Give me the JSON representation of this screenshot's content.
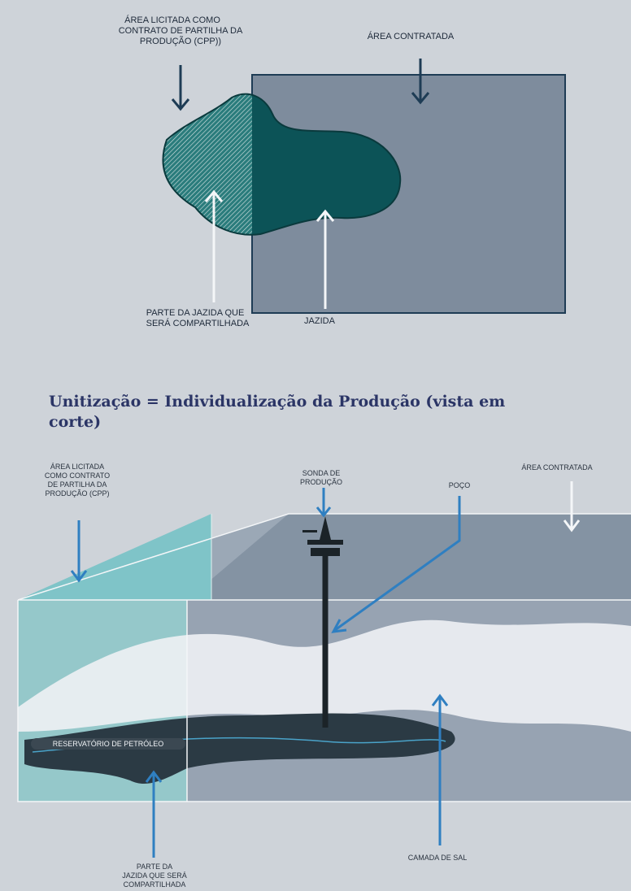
{
  "top_diagram": {
    "cpp_area_label": [
      "ÁREA LICITADA COMO",
      "CONTRATO DE PARTILHA DA",
      "PRODUÇÃO (CPP))"
    ],
    "contracted_area_label": "ÁREA CONTRATADA",
    "shared_part_label": [
      "PARTE DA JAZIDA QUE",
      "SERÁ COMPARTILHADA"
    ],
    "deposit_label": "JAZIDA"
  },
  "section_title": [
    "Unitização = Individualização da Produção (vista em",
    "corte)"
  ],
  "bottom_diagram": {
    "cpp_area_label": [
      "ÁREA LICITADA",
      "COMO CONTRATO",
      "DE PARTILHA DA",
      "PRODUÇÃO (CPP)"
    ],
    "rig_label": [
      "SONDA DE",
      "PRODUÇÃO"
    ],
    "well_label": "POÇO",
    "contracted_area_label": "ÁREA CONTRATADA",
    "reservoir_label": "RESERVATÓRIO DE PETRÓLEO",
    "salt_layer_label": "CAMADA DE SAL",
    "shared_part_label": [
      "PARTE DA",
      "JAZIDA QUE SERÁ",
      "COMPARTILHADA"
    ]
  }
}
